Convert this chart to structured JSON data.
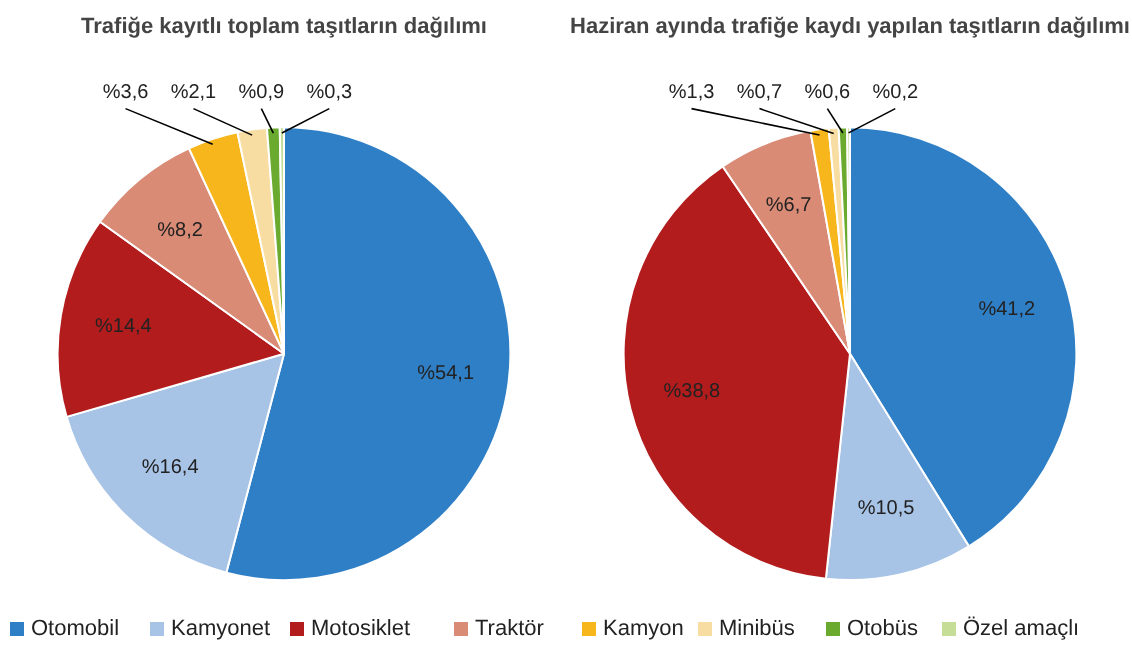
{
  "chart_data": [
    {
      "type": "pie",
      "title": "Trafiğe kayıtlı toplam taşıtların dağılımı",
      "categories": [
        "Otomobil",
        "Kamyonet",
        "Motosiklet",
        "Traktör",
        "Kamyon",
        "Minibüs",
        "Otobüs",
        "Özel amaçlı"
      ],
      "values": [
        54.1,
        16.4,
        14.4,
        8.2,
        3.6,
        2.1,
        0.9,
        0.3
      ],
      "value_labels": [
        "%54,1",
        "%16,4",
        "%14,4",
        "%8,2",
        "%3,6",
        "%2,1",
        "%0,9",
        "%0,3"
      ],
      "colors": [
        "#2f7fc6",
        "#a7c3e6",
        "#b21c1c",
        "#d98b76",
        "#f6b61c",
        "#f8dda2",
        "#6aaa2e",
        "#c5dd96"
      ],
      "legend": "bottom"
    },
    {
      "type": "pie",
      "title": "Haziran ayında trafiğe kaydı yapılan taşıtların dağılımı",
      "values": [
        41.2,
        10.5,
        38.8,
        6.7,
        1.3,
        0.7,
        0.6,
        0.2
      ],
      "value_labels": [
        "%41,2",
        "%10,5",
        "%38,8",
        "%6,7",
        "%1,3",
        "%0,7",
        "%0,6",
        "%0,2"
      ],
      "colors": [
        "#2f7fc6",
        "#a7c3e6",
        "#b21c1c",
        "#d98b76",
        "#f6b61c",
        "#f8dda2",
        "#6aaa2e",
        "#c5dd96"
      ]
    }
  ]
}
